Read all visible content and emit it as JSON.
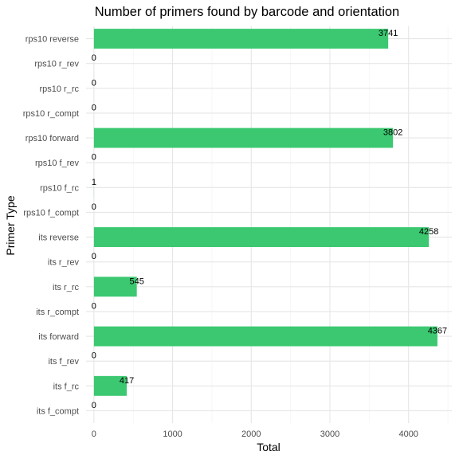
{
  "chart_data": {
    "type": "bar",
    "orientation": "horizontal",
    "title": "Number of primers found by barcode and orientation",
    "xlabel": "Total",
    "ylabel": "Primer Type",
    "xlim": [
      -100,
      4550
    ],
    "xticks": [
      0,
      1000,
      2000,
      3000,
      4000
    ],
    "grid": true,
    "bar_color": "#3bc870",
    "categories": [
      "rps10 reverse",
      "rps10 r_rev",
      "rps10 r_rc",
      "rps10 r_compt",
      "rps10 forward",
      "rps10 f_rev",
      "rps10 f_rc",
      "rps10 f_compt",
      "its reverse",
      "its r_rev",
      "its r_rc",
      "its r_compt",
      "its forward",
      "its f_rev",
      "its f_rc",
      "its f_compt"
    ],
    "values": [
      3741,
      0,
      0,
      0,
      3802,
      0,
      1,
      0,
      4258,
      0,
      545,
      0,
      4367,
      0,
      417,
      0
    ]
  }
}
